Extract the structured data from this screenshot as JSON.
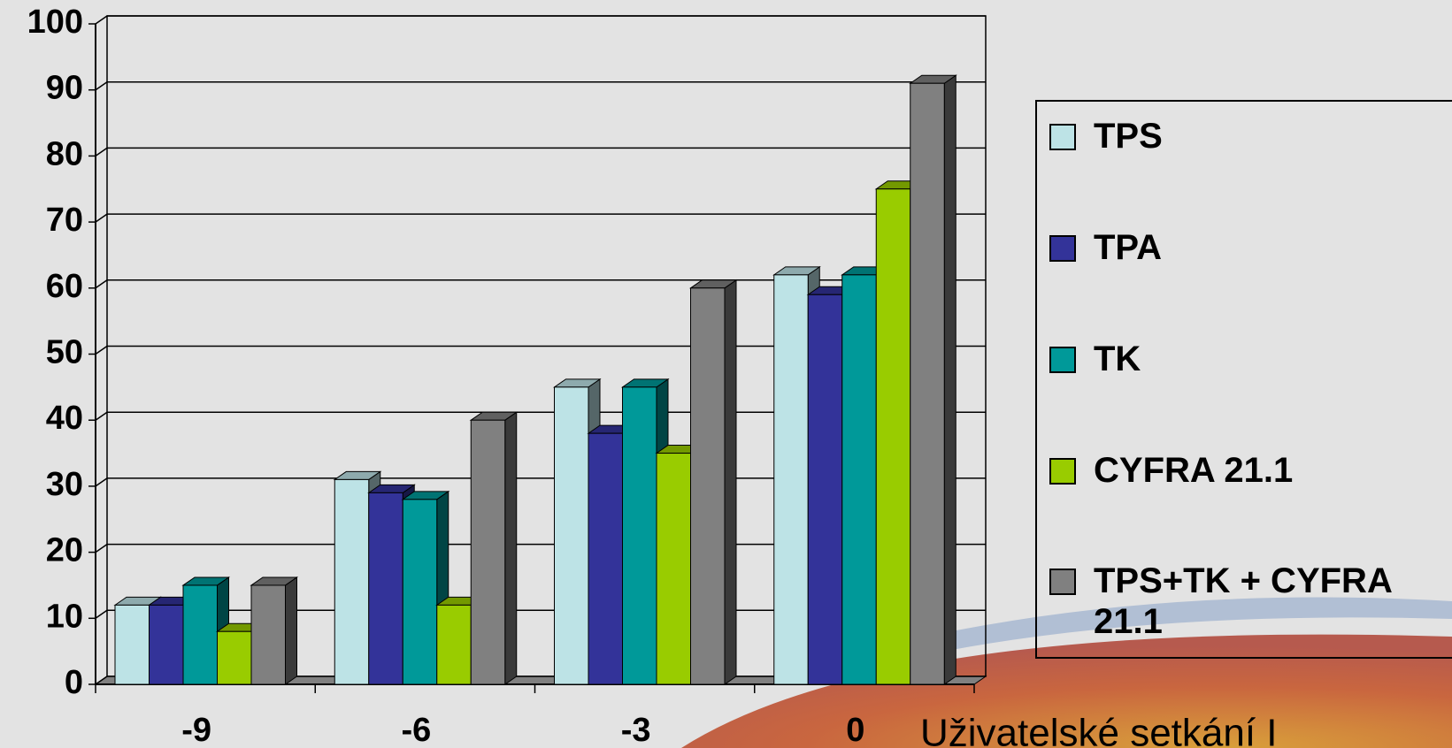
{
  "footer_text": "Uživatelské setkání I",
  "chart_data": {
    "type": "bar3d",
    "categories": [
      "-9",
      "-6",
      "-3",
      "0"
    ],
    "series": [
      {
        "name": "TPS",
        "color": "#bde3e6",
        "values": [
          12,
          31,
          45,
          62
        ]
      },
      {
        "name": "TPA",
        "color": "#333399",
        "values": [
          12,
          29,
          38,
          59
        ]
      },
      {
        "name": "TK",
        "color": "#009999",
        "values": [
          15,
          28,
          45,
          62
        ]
      },
      {
        "name": "CYFRA 21.1",
        "color": "#99cc00",
        "values": [
          8,
          12,
          35,
          75
        ]
      },
      {
        "name": "TPS+TK + CYFRA 21.1",
        "color": "#808080",
        "values": [
          15,
          40,
          60,
          91
        ]
      }
    ],
    "ylim": [
      0,
      100
    ],
    "yticks": [
      0,
      10,
      20,
      30,
      40,
      50,
      60,
      70,
      80,
      90,
      100
    ],
    "grid": true,
    "legend": "right"
  }
}
